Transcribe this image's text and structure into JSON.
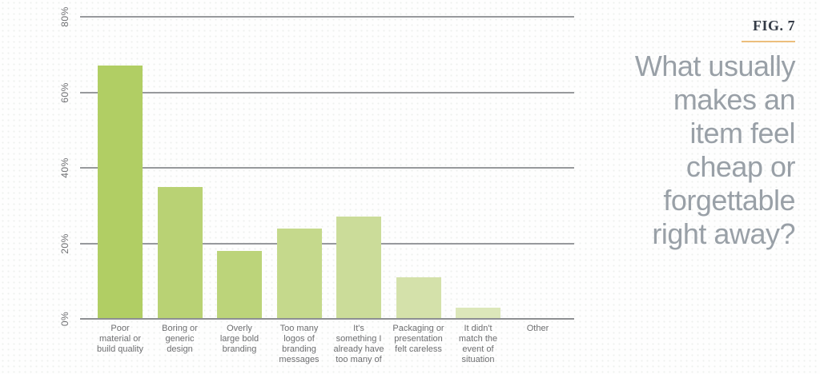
{
  "figure": {
    "label": "FIG. 7",
    "underline_color": "#ecbe7c"
  },
  "question": {
    "text": "What usually makes an item feel cheap or forgettable right away?",
    "lines": [
      "What usually",
      "makes an",
      "item feel",
      "cheap or",
      "forgettable",
      "right away?"
    ]
  },
  "chart_data": {
    "type": "bar",
    "title": "What usually makes an item feel cheap or forgettable right away?",
    "categories": [
      "Poor material or build quality",
      "Boring or generic design",
      "Overly large bold branding",
      "Too many logos of branding messages",
      "It's something I already have too many of",
      "Packaging or presentation felt careless",
      "It didn't match the event of situation",
      "Other"
    ],
    "category_lines": [
      [
        "Poor",
        "material or",
        "build quality"
      ],
      [
        "Boring or",
        "generic",
        "design"
      ],
      [
        "Overly",
        "large bold",
        "branding"
      ],
      [
        "Too many",
        "logos of",
        "branding",
        "messages"
      ],
      [
        "It's",
        "something I",
        "already have",
        "too many of"
      ],
      [
        "Packaging or",
        "presentation",
        "felt careless"
      ],
      [
        "It didn't",
        "match the",
        "event of",
        "situation"
      ],
      [
        "Other"
      ]
    ],
    "values": [
      67,
      35,
      18,
      24,
      27,
      11,
      3,
      0
    ],
    "unit": "%",
    "bar_colors": [
      "#b1ce64",
      "#b9d274",
      "#bcd47a",
      "#c5d98c",
      "#cbdc99",
      "#d4e1aa",
      "#dce7ba",
      "#e3ebc8"
    ],
    "y_ticks": [
      0,
      20,
      40,
      60,
      80
    ],
    "y_tick_labels": [
      "0%",
      "20%",
      "40%",
      "60%",
      "80%"
    ],
    "ylim": [
      0,
      80
    ],
    "xlabel": "",
    "ylabel": "",
    "grid": true,
    "legend": false,
    "axis_color": "#97999c",
    "tick_label_color": "#6e6f72",
    "category_label_color": "#6d6e70"
  }
}
